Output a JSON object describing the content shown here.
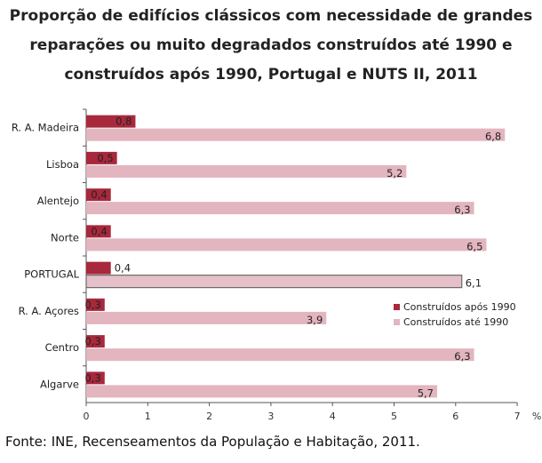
{
  "title_lines": [
    "Proporção de edifícios clássicos com necessidade de grandes",
    "reparações ou muito degradados construídos até 1990 e",
    "construídos após 1990, Portugal e NUTS II, 2011"
  ],
  "source": "Fonte: INE, Recenseamentos da População e Habitação, 2011.",
  "chart_data": {
    "type": "bar",
    "orientation": "horizontal",
    "title": "Proporção de edifícios clássicos com necessidade de grandes reparações ou muito degradados construídos até 1990 e construídos após 1990, Portugal e NUTS II, 2011",
    "categories": [
      "R. A. Madeira",
      "Lisboa",
      "Alentejo",
      "Norte",
      "PORTUGAL",
      "R. A. Açores",
      "Centro",
      "Algarve"
    ],
    "series": [
      {
        "name": "Construídos após 1990",
        "color": "#a8283c",
        "values": [
          0.8,
          0.5,
          0.4,
          0.4,
          0.4,
          0.3,
          0.3,
          0.3
        ],
        "labels": [
          "0,8",
          "0,5",
          "0,4",
          "0,4",
          "0,4",
          "0,3",
          "0,3",
          "0,3"
        ]
      },
      {
        "name": "Construídos até 1990",
        "color": "#e3b5bf",
        "values": [
          6.8,
          5.2,
          6.3,
          6.5,
          6.1,
          3.9,
          6.3,
          5.7
        ],
        "labels": [
          "6,8",
          "5,2",
          "6,3",
          "6,5",
          "6,1",
          "3,9",
          "6,3",
          "5,7"
        ]
      }
    ],
    "xlim": [
      0,
      7
    ],
    "xticks": [
      "0",
      "1",
      "2",
      "3",
      "4",
      "5",
      "6",
      "7"
    ],
    "x_unit": "%",
    "highlight_category": "PORTUGAL",
    "legend_position": "right-middle",
    "grid": false
  }
}
